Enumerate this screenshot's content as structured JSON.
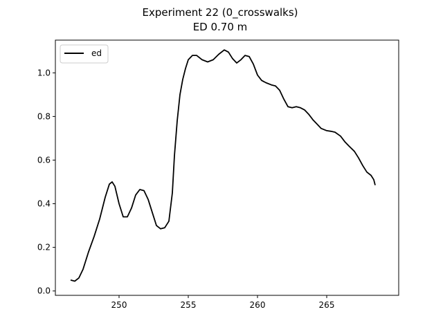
{
  "chart_data": {
    "type": "line",
    "title": "Experiment 22 (0_crosswalks)",
    "subtitle": "ED 0.70 m",
    "xlabel": "",
    "ylabel": "",
    "xlim": [
      245.4,
      270.2
    ],
    "ylim": [
      -0.02,
      1.15
    ],
    "xticks": [
      250,
      255,
      260,
      265
    ],
    "xtick_labels": [
      "250",
      "255",
      "260",
      "265"
    ],
    "yticks": [
      0.0,
      0.2,
      0.4,
      0.6,
      0.8,
      1.0
    ],
    "ytick_labels": [
      "0.0",
      "0.2",
      "0.4",
      "0.6",
      "0.8",
      "1.0"
    ],
    "grid": false,
    "legend": "top-left",
    "series": [
      {
        "name": "ed",
        "color": "#000000",
        "x": [
          246.5,
          246.8,
          247.1,
          247.4,
          247.8,
          248.2,
          248.6,
          249.0,
          249.3,
          249.5,
          249.7,
          250.0,
          250.3,
          250.6,
          250.9,
          251.2,
          251.5,
          251.8,
          252.1,
          252.4,
          252.7,
          253.0,
          253.3,
          253.6,
          253.85,
          254.0,
          254.2,
          254.4,
          254.6,
          254.8,
          255.0,
          255.3,
          255.6,
          256.0,
          256.4,
          256.8,
          257.2,
          257.6,
          257.9,
          258.2,
          258.5,
          258.8,
          259.1,
          259.4,
          259.7,
          260.0,
          260.3,
          260.6,
          261.0,
          261.3,
          261.6,
          261.9,
          262.2,
          262.5,
          262.8,
          263.1,
          263.4,
          263.7,
          264.0,
          264.3,
          264.6,
          265.0,
          265.3,
          265.6,
          266.0,
          266.3,
          266.6,
          267.0,
          267.3,
          267.6,
          267.9,
          268.2,
          268.4,
          268.5
        ],
        "values": [
          0.05,
          0.045,
          0.06,
          0.1,
          0.18,
          0.25,
          0.33,
          0.43,
          0.49,
          0.5,
          0.48,
          0.4,
          0.34,
          0.34,
          0.38,
          0.44,
          0.465,
          0.46,
          0.42,
          0.36,
          0.3,
          0.285,
          0.29,
          0.32,
          0.45,
          0.62,
          0.78,
          0.9,
          0.97,
          1.02,
          1.06,
          1.08,
          1.08,
          1.06,
          1.05,
          1.06,
          1.085,
          1.105,
          1.095,
          1.065,
          1.045,
          1.06,
          1.08,
          1.075,
          1.04,
          0.99,
          0.965,
          0.955,
          0.945,
          0.94,
          0.92,
          0.88,
          0.845,
          0.84,
          0.845,
          0.84,
          0.83,
          0.81,
          0.785,
          0.765,
          0.745,
          0.735,
          0.732,
          0.728,
          0.71,
          0.685,
          0.665,
          0.64,
          0.61,
          0.575,
          0.545,
          0.53,
          0.51,
          0.485
        ]
      }
    ]
  }
}
